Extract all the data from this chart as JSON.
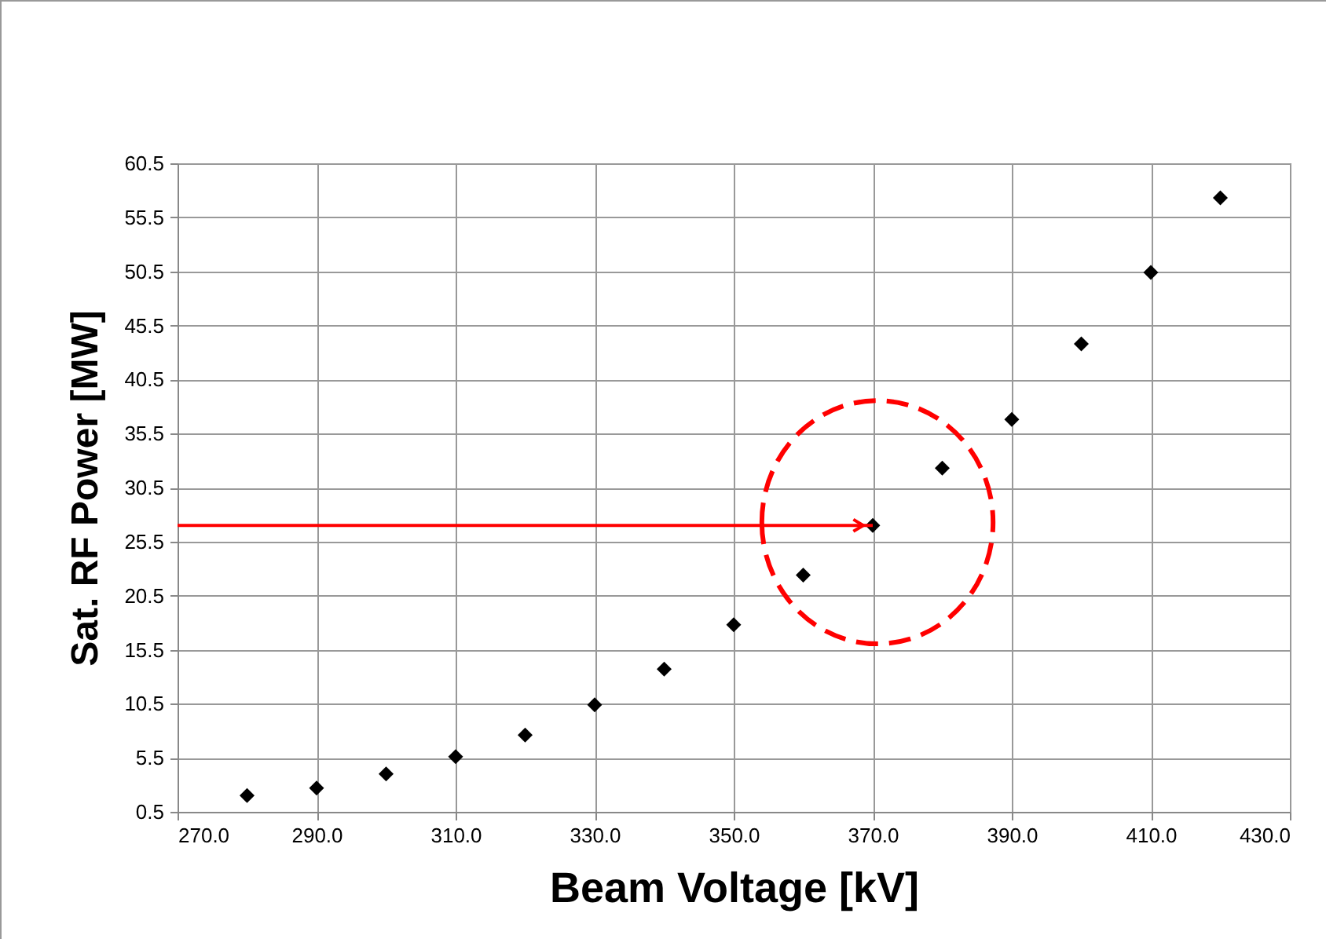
{
  "chart_data": {
    "type": "scatter",
    "xlabel": "Beam Voltage [kV]",
    "ylabel": "Sat. RF Power [MW]",
    "x": [
      280,
      290,
      300,
      310,
      320,
      330,
      340,
      350,
      360,
      370,
      380,
      390,
      400,
      410,
      420
    ],
    "series": [
      {
        "color": "#000000",
        "values": [
          2.0,
          2.7,
          4.0,
          5.6,
          7.6,
          10.4,
          13.7,
          17.8,
          22.4,
          27.0,
          32.3,
          36.8,
          43.8,
          50.4,
          57.3
        ]
      },
      {
        "type": "line",
        "color": "#ff0000",
        "line_style": "solid",
        "marker": "none",
        "x": [
          270,
          370
        ],
        "values": [
          27.0,
          27.0
        ]
      }
    ],
    "xlim": [
      270,
      430
    ],
    "xticks": [
      {
        "value": 270,
        "label": "270.0"
      },
      {
        "value": 290,
        "label": "290.0"
      },
      {
        "value": 310,
        "label": "310.0"
      },
      {
        "value": 330,
        "label": "330.0"
      },
      {
        "value": 350,
        "label": "350.0"
      },
      {
        "value": 370,
        "label": "370.0"
      },
      {
        "value": 390,
        "label": "390.0"
      },
      {
        "value": 410,
        "label": "410.0"
      },
      {
        "value": 430,
        "label": "430.0"
      }
    ],
    "ylim": [
      0.5,
      60.5
    ],
    "yticks": [
      0.5,
      5.5,
      10.5,
      15.5,
      20.5,
      25.5,
      30.5,
      35.5,
      40.5,
      45.5,
      50.5,
      55.5,
      60.5
    ],
    "grid": true,
    "marker": "diamond",
    "legend": false
  }
}
